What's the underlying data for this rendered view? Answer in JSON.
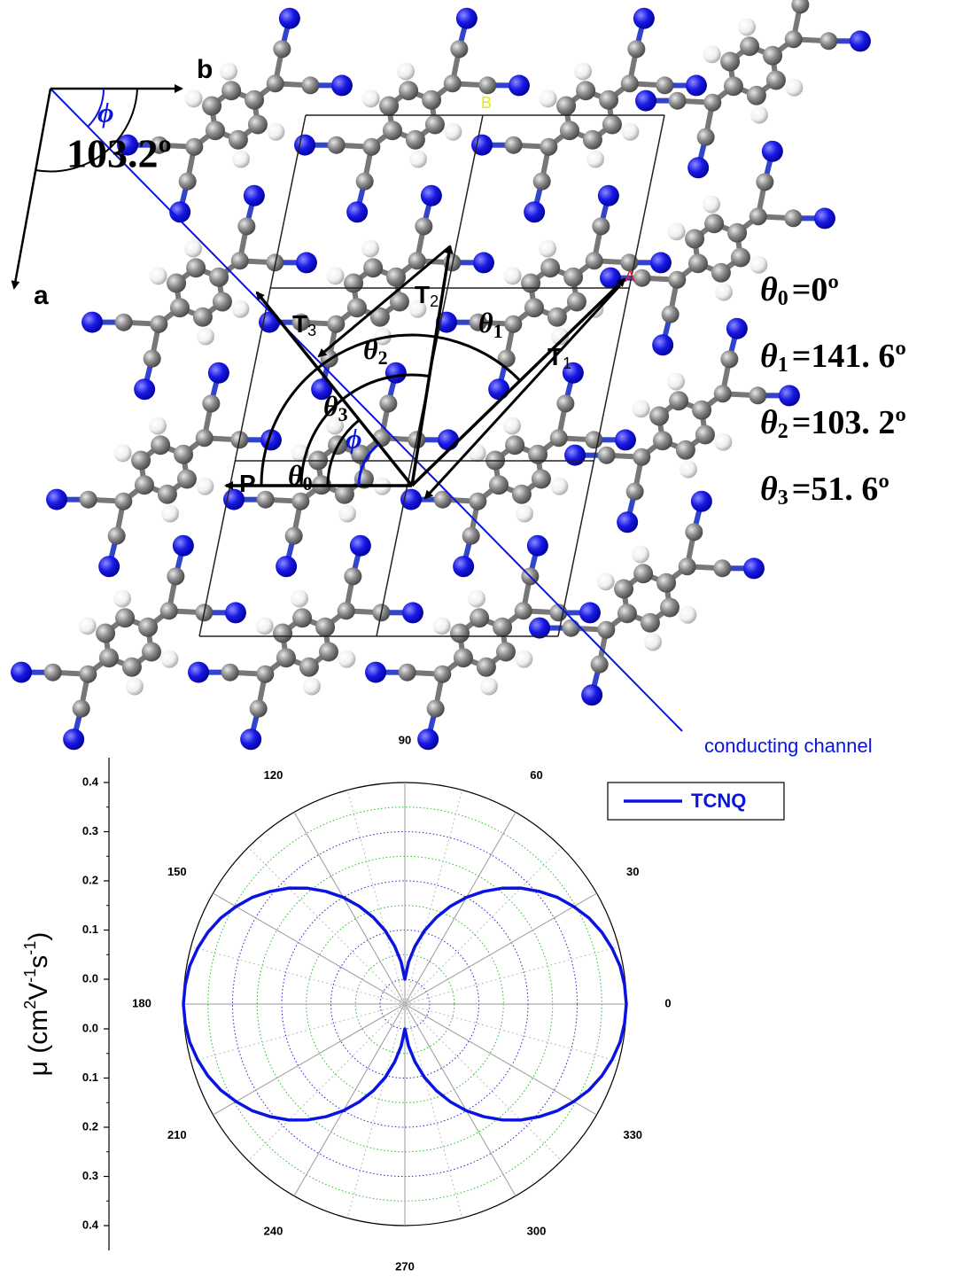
{
  "diagram": {
    "axis_b": "b",
    "axis_a": "a",
    "phi": "ϕ",
    "phi_angle": "103.2º",
    "site_a": "A",
    "site_b": "B",
    "vectors": [
      {
        "name": "T",
        "subscript": "1"
      },
      {
        "name": "T",
        "subscript": "2"
      },
      {
        "name": "T",
        "subscript": "3"
      },
      {
        "name": "P"
      }
    ],
    "angles": [
      {
        "symbol": "θ",
        "subscript": "0"
      },
      {
        "symbol": "θ",
        "subscript": "1"
      },
      {
        "symbol": "θ",
        "subscript": "2"
      },
      {
        "symbol": "θ",
        "subscript": "3"
      }
    ],
    "phi_inner": "ϕ",
    "equations": [
      {
        "symbol": "θ",
        "subscript": "0",
        "text": "=0º"
      },
      {
        "symbol": "θ",
        "subscript": "1",
        "text": "=141. 6º"
      },
      {
        "symbol": "θ",
        "subscript": "2",
        "text": "=103. 2º"
      },
      {
        "symbol": "θ",
        "subscript": "3",
        "text": "=51. 6º"
      }
    ],
    "channel_label": "conducting channel"
  },
  "chart_data": {
    "type": "polar",
    "ylabel_parts": [
      "μ (cm",
      "2",
      "V",
      "-1",
      "s",
      "-1",
      ")"
    ],
    "rlim": [
      0,
      0.4
    ],
    "rticks": [
      {
        "value": 0,
        "label": "0.0"
      },
      0.1,
      0.2,
      0.3,
      0.4
    ],
    "thetaticks": [
      0,
      30,
      60,
      90,
      120,
      150,
      180,
      210,
      240,
      270,
      300,
      330
    ],
    "legend": "upper right",
    "series": [
      {
        "name": "TCNQ",
        "color": "#0a14e0",
        "x": [
          0,
          5,
          10,
          15,
          20,
          25,
          30,
          35,
          40,
          45,
          50,
          55,
          60,
          65,
          70,
          75,
          80,
          85,
          90,
          95,
          100,
          105,
          110,
          115,
          120,
          125,
          130,
          135,
          140,
          145,
          150,
          155,
          160,
          165,
          170,
          175,
          180,
          185,
          190,
          195,
          200,
          205,
          210,
          215,
          220,
          225,
          230,
          235,
          240,
          245,
          250,
          255,
          260,
          265,
          270,
          275,
          280,
          285,
          290,
          295,
          300,
          305,
          310,
          315,
          320,
          325,
          330,
          335,
          340,
          345,
          350,
          355
        ],
        "values": [
          0.4,
          0.398,
          0.394,
          0.386,
          0.376,
          0.363,
          0.346,
          0.328,
          0.306,
          0.283,
          0.257,
          0.229,
          0.2,
          0.169,
          0.137,
          0.104,
          0.069,
          0.035,
          0,
          0.035,
          0.069,
          0.104,
          0.137,
          0.169,
          0.2,
          0.229,
          0.257,
          0.283,
          0.306,
          0.328,
          0.346,
          0.363,
          0.376,
          0.386,
          0.394,
          0.398,
          0.4,
          0.398,
          0.394,
          0.386,
          0.376,
          0.363,
          0.346,
          0.328,
          0.306,
          0.283,
          0.257,
          0.229,
          0.2,
          0.169,
          0.137,
          0.104,
          0.069,
          0.035,
          0,
          0.035,
          0.069,
          0.104,
          0.137,
          0.169,
          0.2,
          0.229,
          0.257,
          0.283,
          0.306,
          0.328,
          0.346,
          0.363,
          0.376,
          0.386,
          0.394,
          0.398
        ]
      }
    ]
  }
}
